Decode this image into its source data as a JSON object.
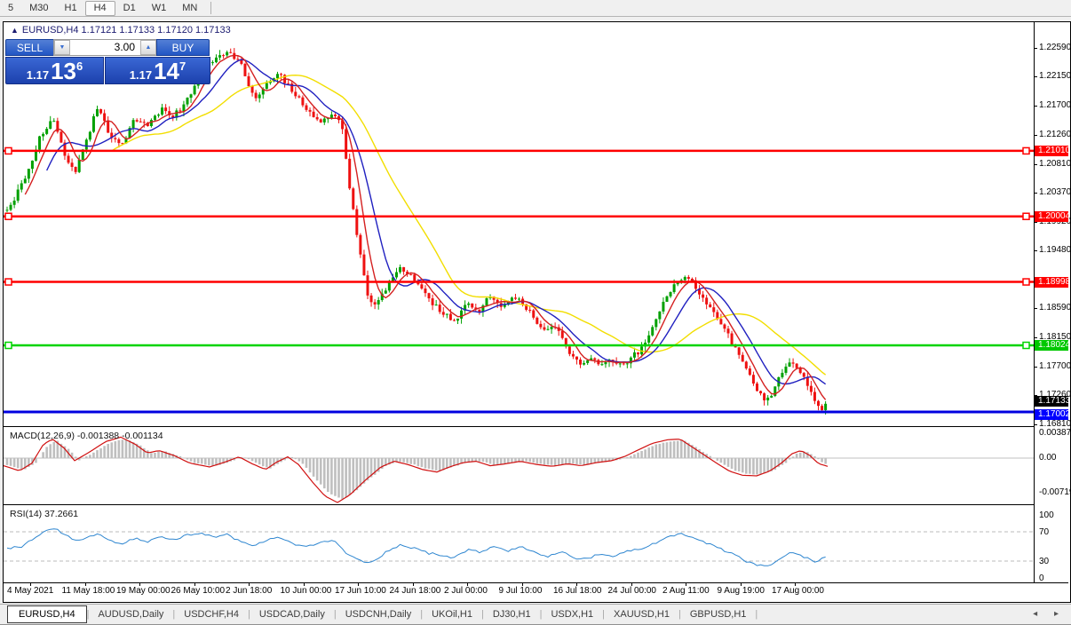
{
  "toolbar": {
    "timeframes": [
      "5",
      "M30",
      "H1",
      "H4",
      "D1",
      "W1",
      "MN"
    ],
    "active": "H4"
  },
  "chart": {
    "symbol_arrow": "▲",
    "title": "EURUSD,H4  1.17121 1.17133 1.17120 1.17133",
    "ohlc": {
      "open": "1.17121",
      "high": "1.17133",
      "low": "1.17120",
      "close": "1.17133"
    }
  },
  "trade_panel": {
    "sell_label": "SELL",
    "buy_label": "BUY",
    "volume": "3.00",
    "down_arrow": "▼",
    "up_arrow": "▲",
    "sell_price": {
      "prefix": "1.17",
      "main": "13",
      "sup": "6"
    },
    "buy_price": {
      "prefix": "1.17",
      "main": "14",
      "sup": "7"
    }
  },
  "price_axis": {
    "ticks": [
      "1.22590",
      "1.22150",
      "1.21700",
      "1.21260",
      "1.20810",
      "1.20370",
      "1.19920",
      "1.19480",
      "1.18590",
      "1.18150",
      "1.17700",
      "1.17260",
      "1.16810"
    ],
    "tags": [
      {
        "label": "1.21010",
        "price": 1.2101,
        "bg": "#ff0000",
        "dy": 0
      },
      {
        "label": "1.20004",
        "price": 1.20004,
        "bg": "#ff0000",
        "dy": 0
      },
      {
        "label": "1.18998",
        "price": 1.18998,
        "bg": "#ff0000",
        "dy": 0
      },
      {
        "label": "1.18024",
        "price": 1.18024,
        "bg": "#00c800",
        "dy": 0
      },
      {
        "label": "1.17133",
        "price": 1.17133,
        "bg": "#000000",
        "dy": -2
      },
      {
        "label": "1.17002",
        "price": 1.17002,
        "bg": "#0000ff",
        "dy": 3
      }
    ]
  },
  "chart_data": {
    "type": "candlestick",
    "symbol": "EURUSD",
    "timeframe": "H4",
    "ylim": [
      1.1681,
      1.2259
    ],
    "colors": {
      "bull": "#00a000",
      "bear": "#ee1111",
      "ma_fast": "#d42020",
      "ma_mid": "#2020c0",
      "ma_slow": "#f2de00"
    },
    "moving_averages": [
      {
        "name": "ma-fast-red",
        "period": 6,
        "color": "#d42020"
      },
      {
        "name": "ma-mid-blue",
        "period": 12,
        "color": "#2020c0"
      },
      {
        "name": "ma-slow-yellow",
        "period": 30,
        "color": "#f2de00"
      }
    ],
    "horizontal_lines": [
      {
        "price": 1.2101,
        "color": "#ff0000",
        "width": 2.5,
        "markers": true
      },
      {
        "price": 1.20004,
        "color": "#ff0000",
        "width": 2.5,
        "markers": true
      },
      {
        "price": 1.18998,
        "color": "#ff0000",
        "width": 2.5,
        "markers": true
      },
      {
        "price": 1.18024,
        "color": "#00d400",
        "width": 2.5,
        "markers": true
      },
      {
        "price": 1.17002,
        "color": "#0000e0",
        "width": 3,
        "markers": false
      }
    ],
    "current_price": 1.17133,
    "price_anchors": [
      [
        0,
        1.2
      ],
      [
        12,
        1.2028
      ],
      [
        25,
        1.206
      ],
      [
        40,
        1.212
      ],
      [
        55,
        1.215
      ],
      [
        68,
        1.21
      ],
      [
        80,
        1.2065
      ],
      [
        95,
        1.212
      ],
      [
        105,
        1.2168
      ],
      [
        118,
        1.213
      ],
      [
        132,
        1.2105
      ],
      [
        148,
        1.215
      ],
      [
        162,
        1.214
      ],
      [
        178,
        1.2165
      ],
      [
        192,
        1.2155
      ],
      [
        208,
        1.218
      ],
      [
        225,
        1.223
      ],
      [
        240,
        1.2245
      ],
      [
        255,
        1.2252
      ],
      [
        268,
        1.223
      ],
      [
        282,
        1.218
      ],
      [
        295,
        1.22
      ],
      [
        310,
        1.2218
      ],
      [
        325,
        1.2195
      ],
      [
        340,
        1.2165
      ],
      [
        355,
        1.2145
      ],
      [
        370,
        1.2158
      ],
      [
        380,
        1.215
      ],
      [
        390,
        1.204
      ],
      [
        400,
        1.1955
      ],
      [
        410,
        1.188
      ],
      [
        420,
        1.1862
      ],
      [
        432,
        1.1895
      ],
      [
        445,
        1.192
      ],
      [
        458,
        1.1908
      ],
      [
        470,
        1.189
      ],
      [
        482,
        1.1868
      ],
      [
        495,
        1.1852
      ],
      [
        508,
        1.1842
      ],
      [
        522,
        1.1866
      ],
      [
        535,
        1.1855
      ],
      [
        548,
        1.188
      ],
      [
        560,
        1.1862
      ],
      [
        572,
        1.1876
      ],
      [
        585,
        1.1868
      ],
      [
        598,
        1.1842
      ],
      [
        610,
        1.182
      ],
      [
        622,
        1.1832
      ],
      [
        635,
        1.1795
      ],
      [
        648,
        1.1772
      ],
      [
        660,
        1.1782
      ],
      [
        672,
        1.177
      ],
      [
        685,
        1.1778
      ],
      [
        698,
        1.1772
      ],
      [
        710,
        1.1788
      ],
      [
        722,
        1.18
      ],
      [
        735,
        1.1845
      ],
      [
        748,
        1.1882
      ],
      [
        760,
        1.1902
      ],
      [
        770,
        1.1908
      ],
      [
        782,
        1.1888
      ],
      [
        794,
        1.1862
      ],
      [
        806,
        1.1838
      ],
      [
        818,
        1.1812
      ],
      [
        830,
        1.1782
      ],
      [
        842,
        1.1748
      ],
      [
        852,
        1.1726
      ],
      [
        862,
        1.1718
      ],
      [
        872,
        1.1748
      ],
      [
        882,
        1.1775
      ],
      [
        892,
        1.1772
      ],
      [
        902,
        1.1752
      ],
      [
        912,
        1.1722
      ],
      [
        920,
        1.1698
      ],
      [
        928,
        1.1713
      ]
    ]
  },
  "indicators": {
    "macd": {
      "label": "MACD(12,26,9) -0.001388 -0.001134",
      "values": [
        "-0.001388",
        "-0.001134"
      ],
      "axis": [
        "0.003873",
        "0.00",
        "-0.00719"
      ],
      "value_scale": 0.0001,
      "anchors": [
        [
          0,
          -12
        ],
        [
          18,
          -20
        ],
        [
          32,
          -8
        ],
        [
          45,
          22
        ],
        [
          55,
          30
        ],
        [
          68,
          16
        ],
        [
          80,
          -4
        ],
        [
          95,
          8
        ],
        [
          115,
          26
        ],
        [
          132,
          33
        ],
        [
          148,
          22
        ],
        [
          162,
          8
        ],
        [
          175,
          12
        ],
        [
          192,
          4
        ],
        [
          210,
          -8
        ],
        [
          232,
          -14
        ],
        [
          250,
          -6
        ],
        [
          265,
          2
        ],
        [
          280,
          -9
        ],
        [
          295,
          -18
        ],
        [
          308,
          -6
        ],
        [
          320,
          2
        ],
        [
          332,
          -10
        ],
        [
          348,
          -38
        ],
        [
          362,
          -60
        ],
        [
          376,
          -70
        ],
        [
          390,
          -58
        ],
        [
          408,
          -34
        ],
        [
          425,
          -14
        ],
        [
          440,
          -5
        ],
        [
          455,
          -10
        ],
        [
          472,
          -18
        ],
        [
          488,
          -22
        ],
        [
          502,
          -14
        ],
        [
          518,
          -7
        ],
        [
          532,
          -5
        ],
        [
          548,
          -12
        ],
        [
          565,
          -9
        ],
        [
          582,
          -5
        ],
        [
          600,
          -10
        ],
        [
          618,
          -13
        ],
        [
          635,
          -9
        ],
        [
          650,
          -12
        ],
        [
          668,
          -7
        ],
        [
          685,
          -4
        ],
        [
          700,
          3
        ],
        [
          715,
          13
        ],
        [
          730,
          23
        ],
        [
          748,
          29
        ],
        [
          762,
          30
        ],
        [
          776,
          17
        ],
        [
          790,
          4
        ],
        [
          804,
          -9
        ],
        [
          818,
          -21
        ],
        [
          832,
          -27
        ],
        [
          848,
          -28
        ],
        [
          862,
          -21
        ],
        [
          875,
          -9
        ],
        [
          888,
          7
        ],
        [
          898,
          12
        ],
        [
          908,
          4
        ],
        [
          918,
          -9
        ],
        [
          928,
          -13
        ]
      ],
      "colors": {
        "histogram": "#bfbfbf",
        "signal": "#d01010"
      }
    },
    "rsi": {
      "label": "RSI(14) 37.2661",
      "value": "37.2661",
      "axis": [
        "100",
        "70",
        "30",
        "0"
      ],
      "levels": [
        70,
        30
      ],
      "color": "#2e86d0",
      "anchors": [
        [
          0,
          46
        ],
        [
          20,
          50
        ],
        [
          35,
          62
        ],
        [
          48,
          72
        ],
        [
          58,
          75
        ],
        [
          70,
          65
        ],
        [
          82,
          57
        ],
        [
          95,
          62
        ],
        [
          105,
          68
        ],
        [
          118,
          58
        ],
        [
          132,
          52
        ],
        [
          148,
          61
        ],
        [
          162,
          56
        ],
        [
          178,
          64
        ],
        [
          192,
          58
        ],
        [
          208,
          66
        ],
        [
          222,
          69
        ],
        [
          238,
          61
        ],
        [
          252,
          66
        ],
        [
          268,
          56
        ],
        [
          282,
          51
        ],
        [
          298,
          59
        ],
        [
          312,
          62
        ],
        [
          328,
          53
        ],
        [
          342,
          49
        ],
        [
          358,
          56
        ],
        [
          372,
          58
        ],
        [
          385,
          42
        ],
        [
          398,
          32
        ],
        [
          408,
          27
        ],
        [
          420,
          33
        ],
        [
          435,
          46
        ],
        [
          448,
          52
        ],
        [
          462,
          48
        ],
        [
          478,
          41
        ],
        [
          492,
          38
        ],
        [
          508,
          35
        ],
        [
          522,
          45
        ],
        [
          538,
          42
        ],
        [
          552,
          50
        ],
        [
          568,
          44
        ],
        [
          582,
          50
        ],
        [
          598,
          41
        ],
        [
          612,
          36
        ],
        [
          628,
          43
        ],
        [
          642,
          35
        ],
        [
          656,
          32
        ],
        [
          672,
          40
        ],
        [
          686,
          36
        ],
        [
          702,
          43
        ],
        [
          718,
          47
        ],
        [
          734,
          55
        ],
        [
          748,
          62
        ],
        [
          762,
          68
        ],
        [
          776,
          62
        ],
        [
          790,
          55
        ],
        [
          806,
          47
        ],
        [
          820,
          40
        ],
        [
          836,
          30
        ],
        [
          850,
          24
        ],
        [
          862,
          22
        ],
        [
          876,
          35
        ],
        [
          886,
          42
        ],
        [
          896,
          38
        ],
        [
          906,
          33
        ],
        [
          916,
          29
        ],
        [
          926,
          37
        ]
      ]
    }
  },
  "dates": [
    "4 May 2021",
    "11 May 18:00",
    "19 May 00:00",
    "26 May 10:00",
    "2 Jun 18:00",
    "10 Jun 00:00",
    "17 Jun 10:00",
    "24 Jun 18:00",
    "2 Jul 00:00",
    "9 Jul 10:00",
    "16 Jul 18:00",
    "24 Jul 00:00",
    "2 Aug 11:00",
    "9 Aug 19:00",
    "17 Aug 00:00"
  ],
  "tabs": {
    "items": [
      "EURUSD,H4",
      "AUDUSD,Daily",
      "USDCHF,H4",
      "USDCAD,Daily",
      "USDCNH,Daily",
      "UKOil,H1",
      "DJ30,H1",
      "USDX,H1",
      "XAUUSD,H1",
      "GBPUSD,H1"
    ],
    "active_index": 0,
    "scroll_left": "◂",
    "scroll_right": "▸"
  }
}
